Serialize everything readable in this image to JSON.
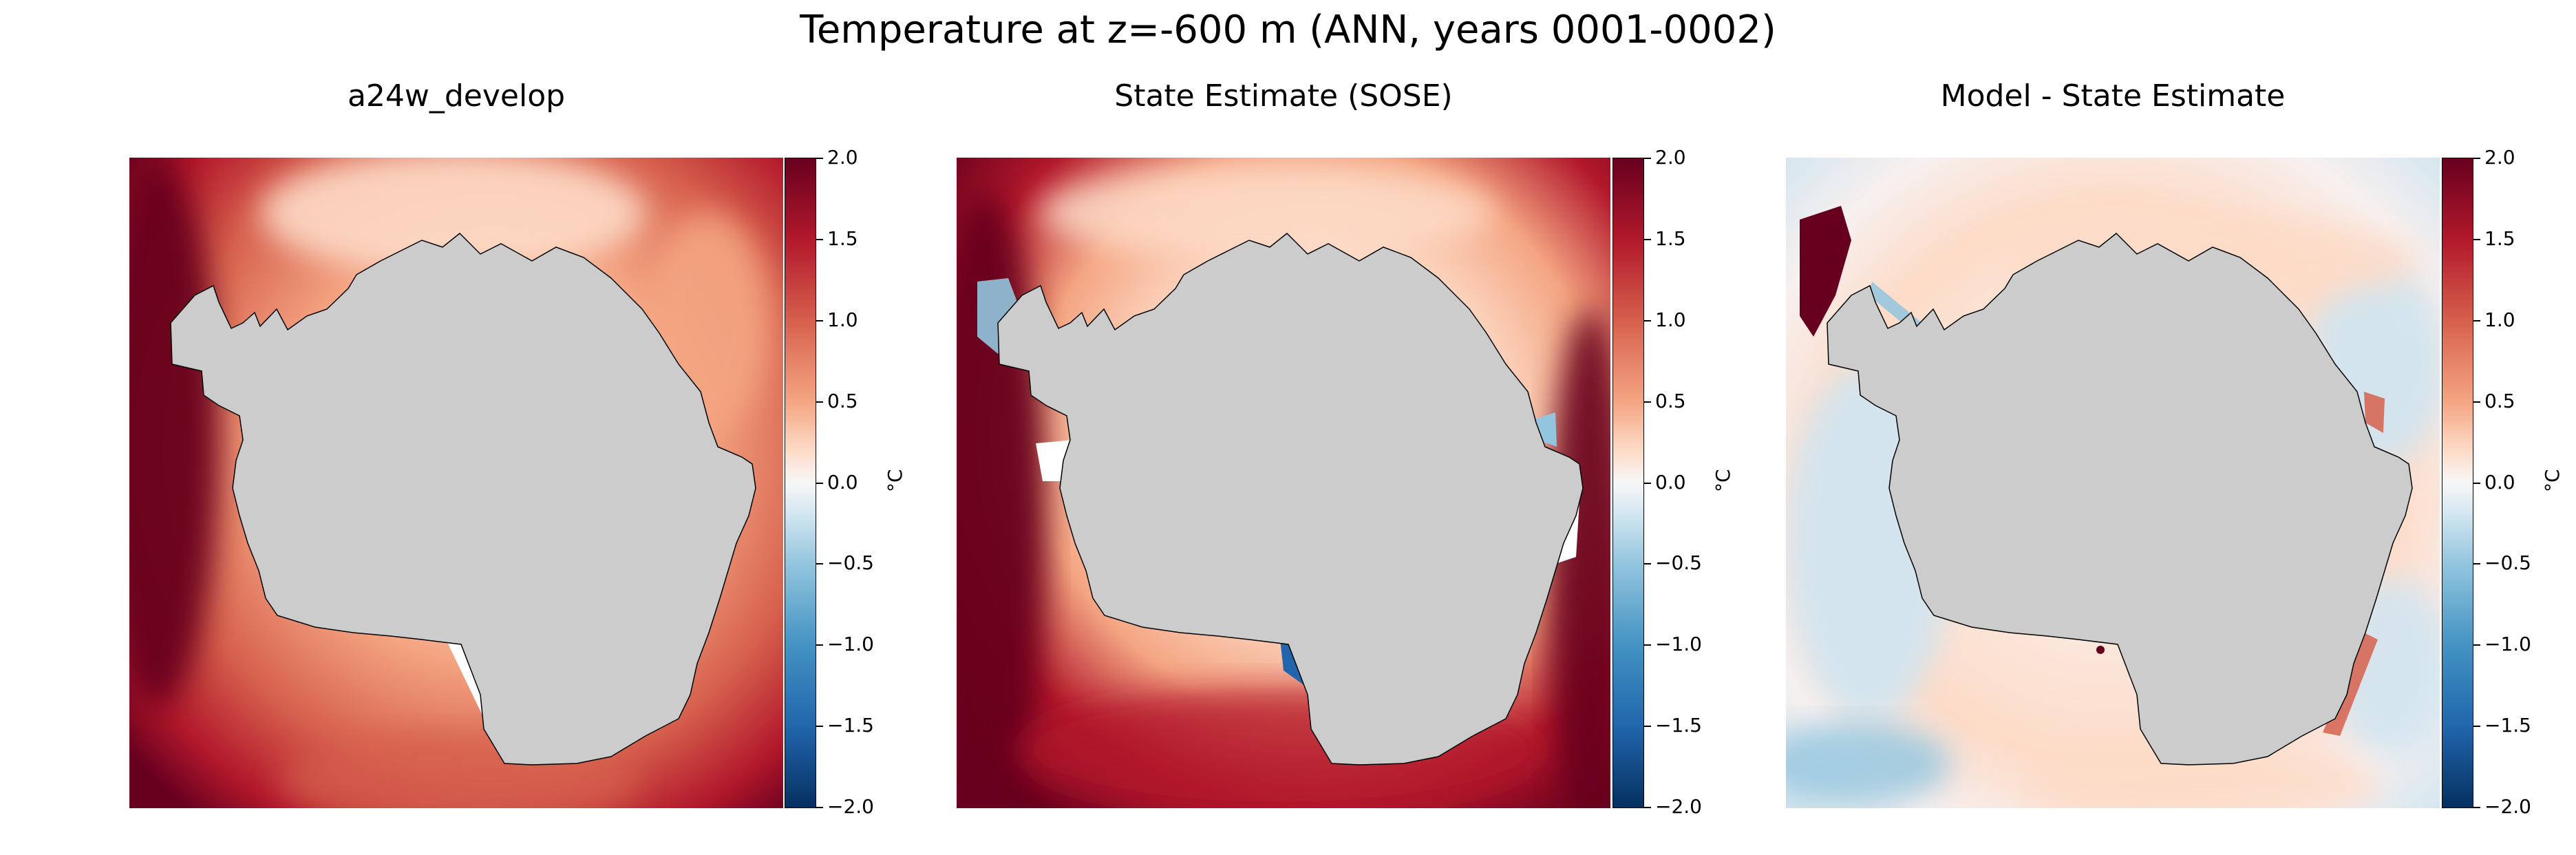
{
  "figure": {
    "title": "Temperature at z=-600 m (ANN, years 0001-0002)"
  },
  "panels": [
    {
      "title": "a24w_develop",
      "variant": "model"
    },
    {
      "title": "State Estimate (SOSE)",
      "variant": "obs"
    },
    {
      "title": "Model - State Estimate",
      "variant": "diff"
    }
  ],
  "colorbar": {
    "ticks": [
      "2.0",
      "1.5",
      "1.0",
      "0.5",
      "0.0",
      "−0.5",
      "−1.0",
      "−1.5",
      "−2.0"
    ],
    "unit": "°C",
    "range": [
      -2.0,
      2.0
    ],
    "colormap": "RdBu_r"
  },
  "colors": {
    "land": "#cccccc",
    "dark_red": "#67001f",
    "red": "#b2182b",
    "mid_red": "#d6604d",
    "light_red": "#f4a582",
    "pale_red": "#fddbc7",
    "white": "#f7f7f7",
    "pale_blue": "#d1e5f0",
    "light_blue": "#92c5de",
    "blue": "#2166ac"
  },
  "chart_data": [
    {
      "type": "heatmap",
      "title": "a24w_develop",
      "field": "temperature",
      "units": "°C",
      "vmin": -2.0,
      "vmax": 2.0
    },
    {
      "type": "heatmap",
      "title": "State Estimate (SOSE)",
      "field": "temperature",
      "units": "°C",
      "vmin": -2.0,
      "vmax": 2.0
    },
    {
      "type": "heatmap",
      "title": "Model - State Estimate",
      "field": "temperature difference",
      "units": "°C",
      "vmin": -2.0,
      "vmax": 2.0
    }
  ]
}
